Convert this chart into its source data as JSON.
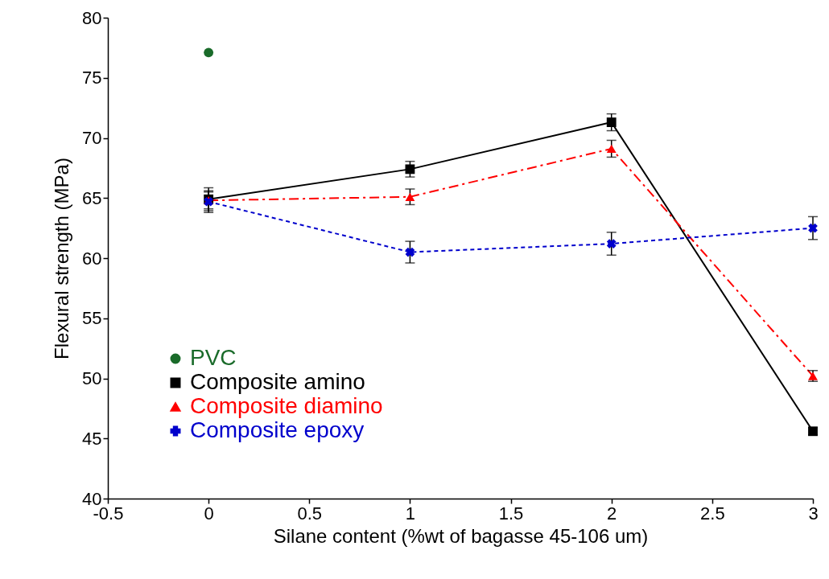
{
  "chart_data": {
    "type": "line",
    "xlabel": "Silane content (%wt of bagasse 45-106 um)",
    "ylabel": "Flexural strength (MPa)",
    "xlim": [
      -0.5,
      3
    ],
    "xticks": [
      -0.5,
      0,
      0.5,
      1,
      1.5,
      2,
      2.5,
      3
    ],
    "ylim": [
      40,
      80
    ],
    "yticks": [
      40,
      45,
      50,
      55,
      60,
      65,
      70,
      75,
      80
    ],
    "grid": false,
    "legend": "bottom left",
    "series": [
      {
        "name": "PVC",
        "color": "#1a6b2a",
        "marker": "circle",
        "x": [
          0
        ],
        "values": [
          77.1
        ]
      },
      {
        "name": "Composite amino",
        "color": "#000000",
        "marker": "square",
        "line_style": "solid",
        "x": [
          0,
          1,
          2,
          3
        ],
        "values": [
          64.9,
          67.4,
          71.3,
          45.6
        ],
        "errors": [
          0.95,
          0.65,
          0.7,
          0.3
        ]
      },
      {
        "name": "Composite diamino",
        "color": "#ff0000",
        "marker": "triangle",
        "line_style": "dashed",
        "x": [
          0,
          1,
          2,
          3
        ],
        "values": [
          64.8,
          65.1,
          69.1,
          50.2
        ],
        "errors": [
          0.7,
          0.65,
          0.7,
          0.45
        ]
      },
      {
        "name": "Composite epoxy",
        "color": "#0000cc",
        "marker": "cross",
        "line_style": "dotted",
        "x": [
          0,
          1,
          2,
          3
        ],
        "values": [
          64.7,
          60.5,
          61.2,
          62.5
        ],
        "errors": [
          0.9,
          0.9,
          0.95,
          0.95
        ]
      }
    ]
  }
}
